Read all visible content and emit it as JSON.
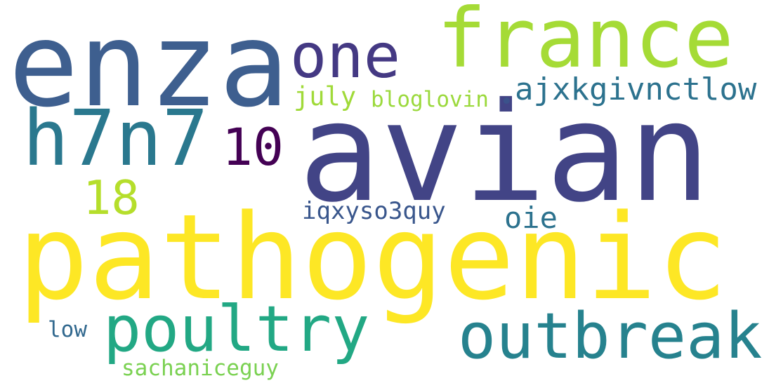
{
  "words": [
    {
      "text": "enza",
      "color": "#3e5f8f"
    },
    {
      "text": "avian",
      "color": "#424486"
    },
    {
      "text": "pathogenic",
      "color": "#fde725"
    },
    {
      "text": "france",
      "color": "#a5db36"
    },
    {
      "text": "one",
      "color": "#443983"
    },
    {
      "text": "h7n7",
      "color": "#2a788e"
    },
    {
      "text": "10",
      "color": "#440154"
    },
    {
      "text": "18",
      "color": "#b5de2b"
    },
    {
      "text": "july",
      "color": "#a0da39"
    },
    {
      "text": "bloglovin",
      "color": "#9bd93c"
    },
    {
      "text": "•",
      "color": "#3b528b"
    },
    {
      "text": "ajxkgivnctlow",
      "color": "#2c728e"
    },
    {
      "text": "iqxyso3quy",
      "color": "#39568c"
    },
    {
      "text": "oie",
      "color": "#2c728e"
    },
    {
      "text": "poultry",
      "color": "#22a884"
    },
    {
      "text": "outbreak",
      "color": "#26828e"
    },
    {
      "text": "low",
      "color": "#31688e"
    },
    {
      "text": "sachaniceguy",
      "color": "#7ad151"
    }
  ]
}
